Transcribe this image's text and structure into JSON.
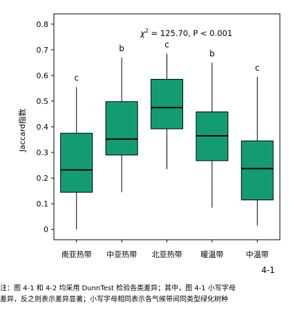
{
  "chart_data": {
    "type": "box",
    "ylabel": "Jaccard指数",
    "ylim": [
      -0.04,
      0.84
    ],
    "yticks": [
      0,
      0.1,
      0.2,
      0.3,
      0.4,
      0.5,
      0.6,
      0.7,
      0.8
    ],
    "ytick_labels": [
      "0",
      "0.1",
      "0.2",
      "0.3",
      "0.4",
      "0.5",
      "0.6",
      "0.7",
      "0.8"
    ],
    "categories": [
      "南亚热带",
      "中亚热带",
      "北亚热带",
      "暖温带",
      "中温带"
    ],
    "boxes": [
      {
        "category": "南亚热带",
        "min": 0.0,
        "q1": 0.145,
        "median": 0.232,
        "q3": 0.375,
        "max": 0.555,
        "letter": "c"
      },
      {
        "category": "中亚热带",
        "min": 0.145,
        "q1": 0.29,
        "median": 0.352,
        "q3": 0.498,
        "max": 0.67,
        "letter": "b"
      },
      {
        "category": "北亚热带",
        "min": 0.235,
        "q1": 0.392,
        "median": 0.475,
        "q3": 0.585,
        "max": 0.685,
        "letter": "c"
      },
      {
        "category": "暖温带",
        "min": 0.085,
        "q1": 0.268,
        "median": 0.365,
        "q3": 0.458,
        "max": 0.65,
        "letter": "b"
      },
      {
        "category": "中温带",
        "min": 0.015,
        "q1": 0.115,
        "median": 0.237,
        "q3": 0.345,
        "max": 0.595,
        "letter": "c"
      }
    ],
    "box_color": "#139C74",
    "stat_chi": "χ",
    "stat_sup": "2",
    "stat_text": " = 125.70, P < 0.001",
    "figure_number": "4-1"
  },
  "note_line1": "注：图 4-1 和 4-2 均采用 DunnTest 检验各类差异；其中，图 4-1 小写字母",
  "note_line2": "差异，反之则表示差异显著；小写字母相同表示各气候带间同类型绿化树种"
}
